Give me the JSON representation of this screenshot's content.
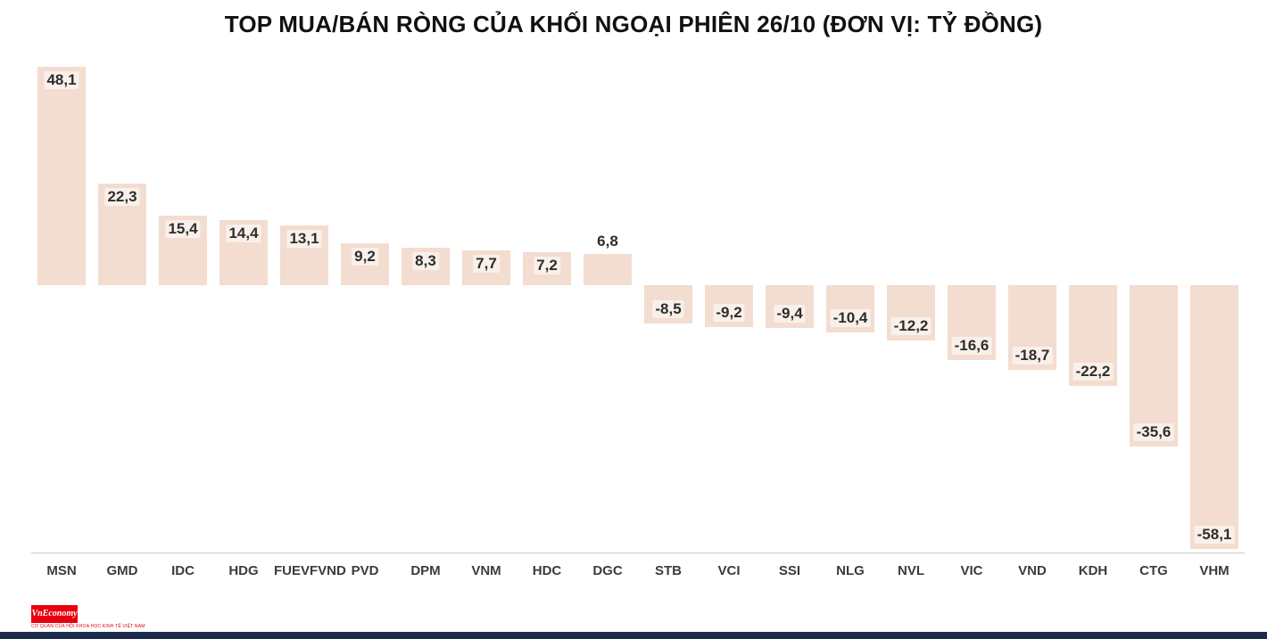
{
  "chart_data": {
    "type": "bar",
    "title": "TOP MUA/BÁN RÒNG CỦA KHỐI NGOẠI PHIÊN 26/10 (ĐƠN VỊ: TỶ ĐỒNG)",
    "categories": [
      "MSN",
      "GMD",
      "IDC",
      "HDG",
      "FUEVFVND",
      "PVD",
      "DPM",
      "VNM",
      "HDC",
      "DGC",
      "STB",
      "VCI",
      "SSI",
      "NLG",
      "NVL",
      "VIC",
      "VND",
      "KDH",
      "CTG",
      "VHM"
    ],
    "values": [
      48.1,
      22.3,
      15.4,
      14.4,
      13.1,
      9.2,
      8.3,
      7.7,
      7.2,
      6.8,
      -8.5,
      -9.2,
      -9.4,
      -10.4,
      -12.2,
      -16.6,
      -18.7,
      -22.2,
      -35.6,
      -58.1
    ],
    "value_labels": [
      "48,1",
      "22,3",
      "15,4",
      "14,4",
      "13,1",
      "9,2",
      "8,3",
      "7,7",
      "7,2",
      "6,8",
      "-8,5",
      "-9,2",
      "-9,4",
      "-10,4",
      "-12,2",
      "-16,6",
      "-18,7",
      "-22,2",
      "-35,6",
      "-58,1"
    ],
    "xlabel": "",
    "ylabel": "",
    "ylim": [
      -60,
      50
    ],
    "grid": false,
    "legend": false,
    "bar_color": "#f3ddd0",
    "label_color": "#2d2d2d",
    "axis_label_color": "#3c3c3c"
  },
  "footer": {
    "logo_text": "VnEconomy",
    "logo_subtext": "CƠ QUAN CỦA HỘI KHOA HỌC KINH TẾ VIỆT NAM",
    "logo_bg": "#e8000d",
    "bottom_bar_color": "#1d2b4d"
  }
}
